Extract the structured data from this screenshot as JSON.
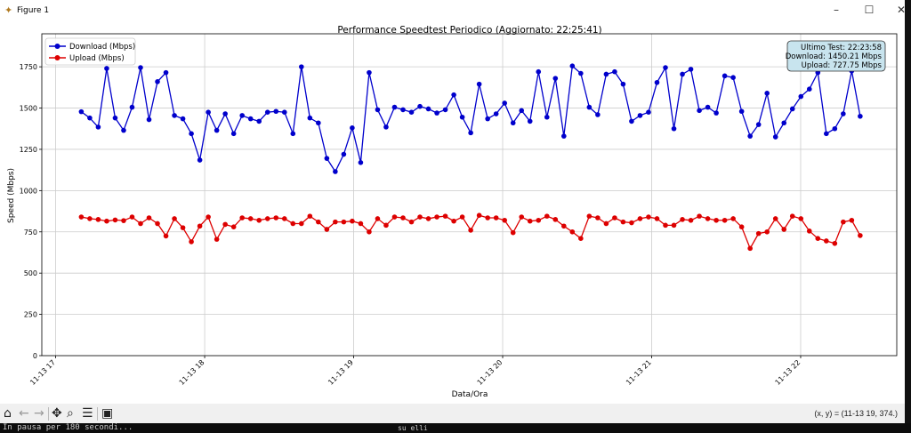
{
  "window": {
    "title": "Figure 1",
    "minimize": "–",
    "maximize": "☐",
    "close": "✕"
  },
  "toolbar": {
    "icons": [
      "home-icon",
      "back-icon",
      "forward-icon",
      "pan-icon",
      "zoom-icon",
      "configure-subplots-icon",
      "save-icon"
    ],
    "coords": "(x, y) = (11-13 19, 374.)"
  },
  "terminal": {
    "text": "In pausa per 180 secondi...",
    "tab": "su elli"
  },
  "colors": {
    "download": "#0000cc",
    "upload": "#dd0000",
    "annotation_bg": "#c8e4ee",
    "grid": "#cccccc"
  },
  "chart_data": {
    "type": "line",
    "title": "Performance Speedtest Periodico (Aggiornato: 22:25:41)",
    "xlabel": "Data/Ora",
    "ylabel": "Speed (Mbps)",
    "ylim": [
      0,
      1950
    ],
    "xlim_hours": [
      16.907,
      22.645
    ],
    "x_start_hour": 17.172,
    "x_step_hours": 0.05682,
    "yticks": [
      0,
      250,
      500,
      750,
      1000,
      1250,
      1500,
      1750
    ],
    "ytick_labels": [
      "0",
      "250",
      "500",
      "750",
      "1000",
      "1250",
      "1500",
      "1750"
    ],
    "xticks_hours": [
      17,
      18,
      19,
      20,
      21,
      22
    ],
    "xtick_labels": [
      "11-13 17",
      "11-13 18",
      "11-13 19",
      "11-13 20",
      "11-13 21",
      "11-13 22"
    ],
    "grid": true,
    "legend_position": "upper-left",
    "series": [
      {
        "name": "Download (Mbps)",
        "color": "#0000cc",
        "values": [
          1478,
          1440,
          1385,
          1740,
          1440,
          1365,
          1505,
          1745,
          1430,
          1660,
          1715,
          1455,
          1435,
          1345,
          1185,
          1475,
          1365,
          1465,
          1345,
          1455,
          1435,
          1420,
          1475,
          1480,
          1475,
          1345,
          1750,
          1440,
          1410,
          1195,
          1115,
          1220,
          1380,
          1170,
          1715,
          1490,
          1385,
          1505,
          1490,
          1475,
          1510,
          1495,
          1470,
          1490,
          1580,
          1445,
          1350,
          1645,
          1435,
          1465,
          1530,
          1410,
          1485,
          1420,
          1720,
          1445,
          1680,
          1330,
          1755,
          1710,
          1505,
          1460,
          1705,
          1720,
          1645,
          1420,
          1455,
          1475,
          1655,
          1745,
          1375,
          1705,
          1735,
          1485,
          1505,
          1470,
          1695,
          1685,
          1480,
          1330,
          1400,
          1590,
          1325,
          1410,
          1495,
          1570,
          1615,
          1715,
          1345,
          1375,
          1465,
          1725,
          1450.21
        ]
      },
      {
        "name": "Upload (Mbps)",
        "color": "#dd0000",
        "values": [
          840,
          830,
          825,
          815,
          822,
          818,
          840,
          800,
          835,
          800,
          725,
          830,
          775,
          690,
          785,
          840,
          705,
          795,
          780,
          835,
          830,
          820,
          830,
          835,
          830,
          800,
          800,
          845,
          810,
          765,
          810,
          810,
          815,
          800,
          750,
          830,
          790,
          840,
          835,
          810,
          840,
          830,
          840,
          845,
          815,
          840,
          760,
          850,
          835,
          835,
          820,
          745,
          840,
          815,
          820,
          845,
          825,
          785,
          750,
          710,
          845,
          835,
          800,
          835,
          810,
          805,
          830,
          840,
          830,
          790,
          790,
          825,
          820,
          845,
          830,
          820,
          820,
          830,
          780,
          650,
          740,
          750,
          830,
          765,
          845,
          830,
          755,
          710,
          695,
          680,
          810,
          820,
          727.75
        ]
      }
    ],
    "annotation": {
      "lines": [
        "Ultimo Test: 22:23:58",
        "Download: 1450.21 Mbps",
        "Upload: 727.75 Mbps"
      ],
      "position": "top-right"
    }
  }
}
